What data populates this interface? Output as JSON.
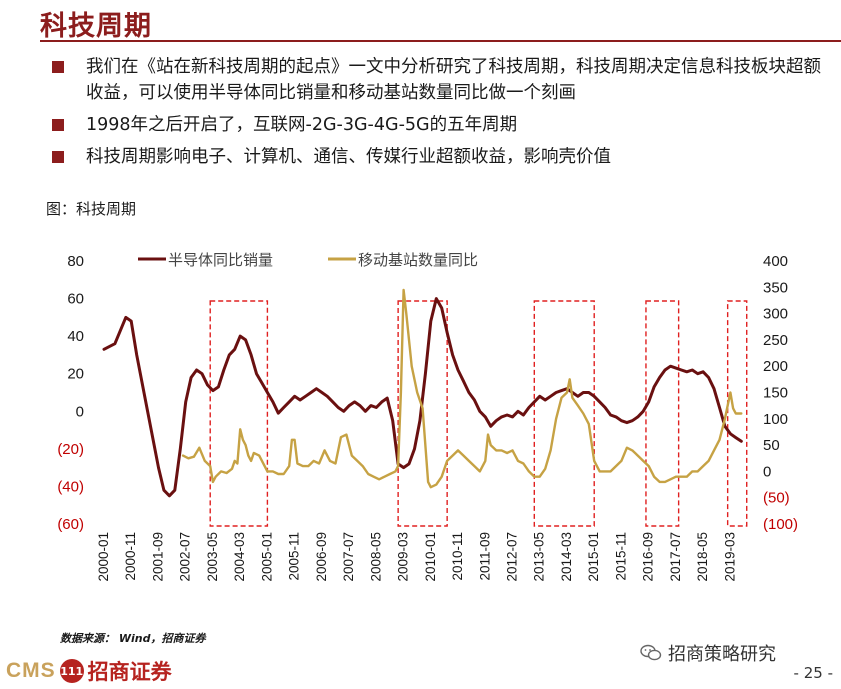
{
  "header": {
    "title": "科技周期"
  },
  "bullets": [
    "我们在《站在新科技周期的起点》一文中分析研究了科技周期，科技周期决定信息科技板块超额收益，可以使用半导体同比销量和移动基站数量同比做一个刻画",
    "1998年之后开启了，互联网-2G-3G-4G-5G的五年周期",
    "科技周期影响电子、计算机、通信、传媒行业超额收益，影响壳价值"
  ],
  "figure_caption": "图：科技周期",
  "source": "数据来源： Wind，招商证券",
  "footer": {
    "cms": "CMS",
    "badge": "111",
    "brand_cn": "招商证券",
    "wechat": "招商策略研究",
    "page": "- 25 -"
  },
  "colors": {
    "brand": "#8c1d1d",
    "series1": "#6a1010",
    "series2": "#c6a244",
    "box": "#e02020",
    "negative_tick": "#c00000"
  },
  "chart_data": {
    "type": "line",
    "x_tick_labels": [
      "2000-01",
      "2000-11",
      "2001-09",
      "2002-07",
      "2003-05",
      "2004-03",
      "2005-01",
      "2005-11",
      "2006-09",
      "2007-07",
      "2008-05",
      "2009-03",
      "2010-01",
      "2010-11",
      "2011-09",
      "2012-07",
      "2013-05",
      "2014-03",
      "2015-01",
      "2015-11",
      "2016-09",
      "2017-07",
      "2018-05",
      "2019-03"
    ],
    "y_left": {
      "range": [
        -60,
        80
      ],
      "ticks": [
        80,
        60,
        40,
        20,
        0,
        -20,
        -40,
        -60
      ],
      "tick_labels": [
        "80",
        "60",
        "40",
        "20",
        "0",
        "(20)",
        "(40)",
        "(60)"
      ]
    },
    "y_right": {
      "range": [
        -100,
        400
      ],
      "ticks": [
        400,
        350,
        300,
        250,
        200,
        150,
        100,
        50,
        0,
        -50,
        -100
      ],
      "tick_labels": [
        "400",
        "350",
        "300",
        "250",
        "200",
        "150",
        "100",
        "50",
        "0",
        "(50)",
        "(100)"
      ]
    },
    "legend_placement": "top-left",
    "series": [
      {
        "name": "半导体同比销量",
        "axis": "left",
        "points": [
          [
            "2000-01",
            33
          ],
          [
            "2000-05",
            36
          ],
          [
            "2000-09",
            50
          ],
          [
            "2000-11",
            48
          ],
          [
            "2001-01",
            30
          ],
          [
            "2001-05",
            0
          ],
          [
            "2001-09",
            -30
          ],
          [
            "2001-11",
            -42
          ],
          [
            "2002-01",
            -45
          ],
          [
            "2002-03",
            -42
          ],
          [
            "2002-05",
            -20
          ],
          [
            "2002-07",
            5
          ],
          [
            "2002-09",
            18
          ],
          [
            "2002-11",
            22
          ],
          [
            "2003-01",
            20
          ],
          [
            "2003-03",
            14
          ],
          [
            "2003-05",
            11
          ],
          [
            "2003-07",
            13
          ],
          [
            "2003-09",
            22
          ],
          [
            "2003-11",
            30
          ],
          [
            "2004-01",
            33
          ],
          [
            "2004-03",
            40
          ],
          [
            "2004-05",
            38
          ],
          [
            "2004-07",
            30
          ],
          [
            "2004-09",
            20
          ],
          [
            "2004-11",
            15
          ],
          [
            "2005-01",
            10
          ],
          [
            "2005-03",
            5
          ],
          [
            "2005-05",
            -1
          ],
          [
            "2005-07",
            2
          ],
          [
            "2005-09",
            5
          ],
          [
            "2005-11",
            8
          ],
          [
            "2006-01",
            6
          ],
          [
            "2006-03",
            8
          ],
          [
            "2006-05",
            10
          ],
          [
            "2006-07",
            12
          ],
          [
            "2006-09",
            10
          ],
          [
            "2006-11",
            8
          ],
          [
            "2007-01",
            5
          ],
          [
            "2007-03",
            2
          ],
          [
            "2007-05",
            0
          ],
          [
            "2007-07",
            3
          ],
          [
            "2007-09",
            5
          ],
          [
            "2007-11",
            3
          ],
          [
            "2008-01",
            0
          ],
          [
            "2008-03",
            3
          ],
          [
            "2008-05",
            2
          ],
          [
            "2008-07",
            5
          ],
          [
            "2008-09",
            7
          ],
          [
            "2008-11",
            -5
          ],
          [
            "2009-01",
            -28
          ],
          [
            "2009-03",
            -30
          ],
          [
            "2009-05",
            -28
          ],
          [
            "2009-07",
            -20
          ],
          [
            "2009-09",
            -5
          ],
          [
            "2009-11",
            20
          ],
          [
            "2010-01",
            48
          ],
          [
            "2010-03",
            60
          ],
          [
            "2010-05",
            55
          ],
          [
            "2010-07",
            42
          ],
          [
            "2010-09",
            30
          ],
          [
            "2010-11",
            22
          ],
          [
            "2011-01",
            16
          ],
          [
            "2011-03",
            10
          ],
          [
            "2011-05",
            6
          ],
          [
            "2011-07",
            0
          ],
          [
            "2011-09",
            -3
          ],
          [
            "2011-11",
            -8
          ],
          [
            "2012-01",
            -5
          ],
          [
            "2012-03",
            -3
          ],
          [
            "2012-05",
            -2
          ],
          [
            "2012-07",
            -3
          ],
          [
            "2012-09",
            0
          ],
          [
            "2012-11",
            -2
          ],
          [
            "2013-01",
            2
          ],
          [
            "2013-03",
            5
          ],
          [
            "2013-05",
            8
          ],
          [
            "2013-07",
            6
          ],
          [
            "2013-09",
            8
          ],
          [
            "2013-11",
            10
          ],
          [
            "2014-01",
            11
          ],
          [
            "2014-03",
            12
          ],
          [
            "2014-05",
            10
          ],
          [
            "2014-07",
            8
          ],
          [
            "2014-09",
            10
          ],
          [
            "2014-11",
            10
          ],
          [
            "2015-01",
            8
          ],
          [
            "2015-03",
            5
          ],
          [
            "2015-05",
            2
          ],
          [
            "2015-07",
            -2
          ],
          [
            "2015-09",
            -3
          ],
          [
            "2015-11",
            -5
          ],
          [
            "2016-01",
            -6
          ],
          [
            "2016-03",
            -5
          ],
          [
            "2016-05",
            -3
          ],
          [
            "2016-07",
            0
          ],
          [
            "2016-09",
            5
          ],
          [
            "2016-11",
            13
          ],
          [
            "2017-01",
            18
          ],
          [
            "2017-03",
            22
          ],
          [
            "2017-05",
            24
          ],
          [
            "2017-07",
            23
          ],
          [
            "2017-09",
            22
          ],
          [
            "2017-11",
            21
          ],
          [
            "2018-01",
            22
          ],
          [
            "2018-03",
            20
          ],
          [
            "2018-05",
            21
          ],
          [
            "2018-07",
            18
          ],
          [
            "2018-09",
            12
          ],
          [
            "2018-11",
            2
          ],
          [
            "2019-01",
            -8
          ],
          [
            "2019-03",
            -12
          ],
          [
            "2019-05",
            -14
          ],
          [
            "2019-07",
            -16
          ]
        ]
      },
      {
        "name": "移动基站数量同比",
        "axis": "right",
        "points": [
          [
            "2002-06",
            30
          ],
          [
            "2002-08",
            25
          ],
          [
            "2002-10",
            28
          ],
          [
            "2002-12",
            45
          ],
          [
            "2003-02",
            20
          ],
          [
            "2003-04",
            10
          ],
          [
            "2003-05",
            -20
          ],
          [
            "2003-06",
            -10
          ],
          [
            "2003-08",
            0
          ],
          [
            "2003-10",
            -3
          ],
          [
            "2003-12",
            5
          ],
          [
            "2004-01",
            20
          ],
          [
            "2004-02",
            15
          ],
          [
            "2004-03",
            80
          ],
          [
            "2004-04",
            60
          ],
          [
            "2004-05",
            50
          ],
          [
            "2004-06",
            30
          ],
          [
            "2004-07",
            20
          ],
          [
            "2004-08",
            35
          ],
          [
            "2004-10",
            30
          ],
          [
            "2005-01",
            0
          ],
          [
            "2005-03",
            0
          ],
          [
            "2005-05",
            -5
          ],
          [
            "2005-07",
            -5
          ],
          [
            "2005-09",
            10
          ],
          [
            "2005-10",
            60
          ],
          [
            "2005-11",
            60
          ],
          [
            "2005-12",
            15
          ],
          [
            "2006-02",
            10
          ],
          [
            "2006-04",
            10
          ],
          [
            "2006-06",
            20
          ],
          [
            "2006-08",
            15
          ],
          [
            "2006-10",
            40
          ],
          [
            "2006-12",
            20
          ],
          [
            "2007-02",
            15
          ],
          [
            "2007-04",
            65
          ],
          [
            "2007-06",
            70
          ],
          [
            "2007-08",
            30
          ],
          [
            "2007-10",
            20
          ],
          [
            "2007-12",
            10
          ],
          [
            "2008-02",
            -5
          ],
          [
            "2008-04",
            -10
          ],
          [
            "2008-06",
            -15
          ],
          [
            "2008-08",
            -10
          ],
          [
            "2008-10",
            -5
          ],
          [
            "2008-12",
            0
          ],
          [
            "2009-01",
            10
          ],
          [
            "2009-02",
            150
          ],
          [
            "2009-03",
            345
          ],
          [
            "2009-04",
            300
          ],
          [
            "2009-06",
            200
          ],
          [
            "2009-08",
            150
          ],
          [
            "2009-10",
            120
          ],
          [
            "2009-12",
            -20
          ],
          [
            "2010-01",
            -30
          ],
          [
            "2010-03",
            -25
          ],
          [
            "2010-05",
            -10
          ],
          [
            "2010-07",
            20
          ],
          [
            "2010-09",
            30
          ],
          [
            "2010-11",
            40
          ],
          [
            "2011-01",
            30
          ],
          [
            "2011-03",
            20
          ],
          [
            "2011-05",
            10
          ],
          [
            "2011-07",
            0
          ],
          [
            "2011-09",
            20
          ],
          [
            "2011-10",
            70
          ],
          [
            "2011-11",
            50
          ],
          [
            "2012-01",
            40
          ],
          [
            "2012-03",
            40
          ],
          [
            "2012-05",
            35
          ],
          [
            "2012-07",
            40
          ],
          [
            "2012-09",
            20
          ],
          [
            "2012-11",
            15
          ],
          [
            "2013-01",
            0
          ],
          [
            "2013-03",
            -10
          ],
          [
            "2013-05",
            -10
          ],
          [
            "2013-07",
            5
          ],
          [
            "2013-09",
            40
          ],
          [
            "2013-11",
            100
          ],
          [
            "2014-01",
            140
          ],
          [
            "2014-03",
            150
          ],
          [
            "2014-04",
            175
          ],
          [
            "2014-05",
            140
          ],
          [
            "2014-07",
            125
          ],
          [
            "2014-09",
            110
          ],
          [
            "2014-11",
            90
          ],
          [
            "2015-01",
            20
          ],
          [
            "2015-03",
            0
          ],
          [
            "2015-05",
            0
          ],
          [
            "2015-07",
            0
          ],
          [
            "2015-09",
            10
          ],
          [
            "2015-11",
            20
          ],
          [
            "2016-01",
            45
          ],
          [
            "2016-03",
            40
          ],
          [
            "2016-05",
            30
          ],
          [
            "2016-07",
            20
          ],
          [
            "2016-09",
            10
          ],
          [
            "2016-11",
            -10
          ],
          [
            "2017-01",
            -20
          ],
          [
            "2017-03",
            -20
          ],
          [
            "2017-05",
            -15
          ],
          [
            "2017-07",
            -10
          ],
          [
            "2017-09",
            -10
          ],
          [
            "2017-11",
            -10
          ],
          [
            "2018-01",
            0
          ],
          [
            "2018-03",
            0
          ],
          [
            "2018-05",
            10
          ],
          [
            "2018-07",
            20
          ],
          [
            "2018-09",
            40
          ],
          [
            "2018-11",
            60
          ],
          [
            "2019-01",
            100
          ],
          [
            "2019-03",
            150
          ],
          [
            "2019-04",
            120
          ],
          [
            "2019-05",
            110
          ],
          [
            "2019-07",
            110
          ]
        ]
      }
    ],
    "highlight_periods": [
      [
        "2003-04",
        "2005-01"
      ],
      [
        "2009-01",
        "2010-07"
      ],
      [
        "2013-03",
        "2015-01"
      ],
      [
        "2016-08",
        "2017-08"
      ],
      [
        "2019-02",
        "2019-09"
      ]
    ]
  }
}
